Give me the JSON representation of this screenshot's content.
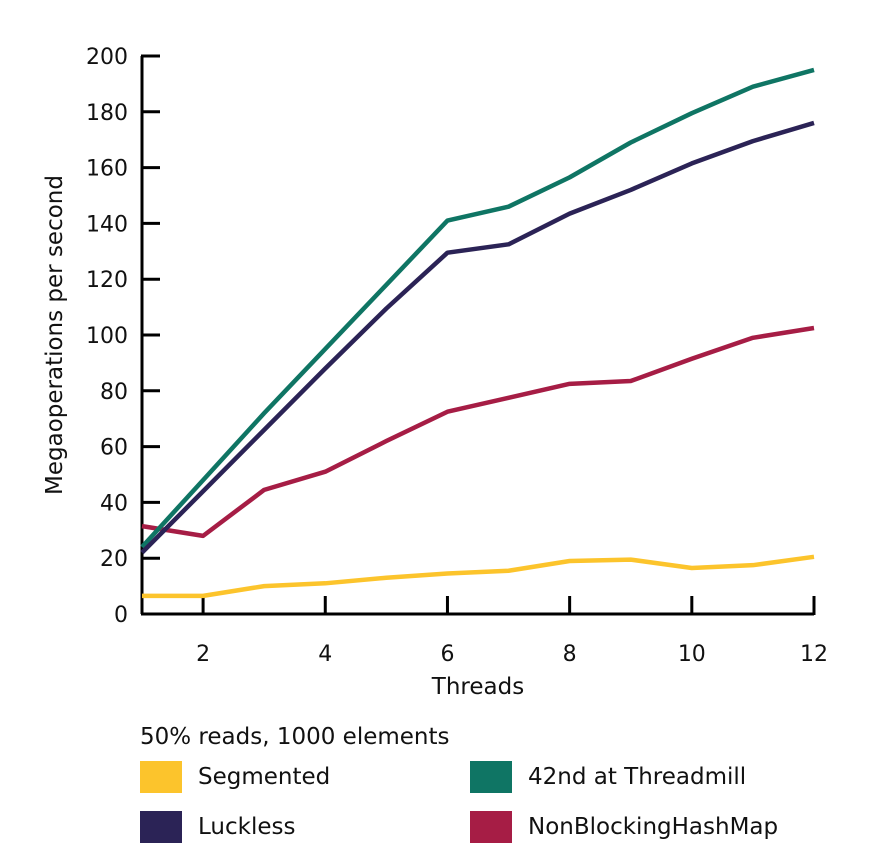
{
  "chart_data": {
    "type": "line",
    "title": "",
    "xlabel": "Threads",
    "ylabel": "Megaoperations per second",
    "xlim": [
      1,
      12
    ],
    "ylim": [
      0,
      200
    ],
    "x_ticks": [
      2,
      4,
      6,
      8,
      10,
      12
    ],
    "y_ticks": [
      0,
      20,
      40,
      60,
      80,
      100,
      120,
      140,
      160,
      180,
      200
    ],
    "grid": false,
    "legend_position": "bottom",
    "legend_title": "50% reads, 1000 elements",
    "x": [
      1,
      2,
      3,
      4,
      5,
      6,
      7,
      8,
      9,
      10,
      11,
      12
    ],
    "series": [
      {
        "name": "Segmented",
        "color": "#fcc42c",
        "values": [
          6.5,
          6.5,
          10,
          11,
          13,
          14.5,
          15.5,
          19,
          19.5,
          16.5,
          17.5,
          20.5
        ]
      },
      {
        "name": "42nd at Threadmill",
        "color": "#0f7564",
        "values": [
          24,
          48,
          72,
          95,
          118,
          141,
          146,
          156.5,
          169,
          179.5,
          189,
          195
        ]
      },
      {
        "name": "Luckless",
        "color": "#2b2356",
        "values": [
          22,
          44,
          66,
          88,
          109.5,
          129.5,
          132.5,
          143.5,
          152,
          161.5,
          169.5,
          176
        ]
      },
      {
        "name": "NonBlockingHashMap",
        "color": "#a61d45",
        "values": [
          31.5,
          28,
          44.5,
          51,
          62,
          72.5,
          77.5,
          82.5,
          83.5,
          91.5,
          99,
          102.5
        ]
      }
    ]
  }
}
